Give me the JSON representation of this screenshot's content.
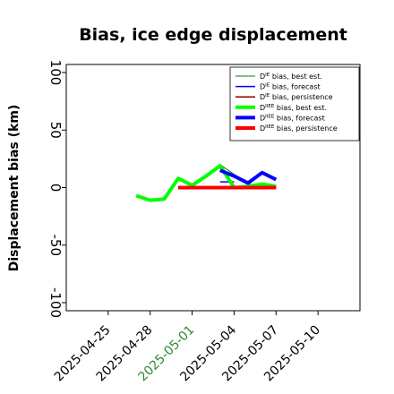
{
  "chart_data": {
    "type": "line",
    "title": "Bias, ice edge displacement",
    "ylabel": "Displacement bias (km)",
    "xlabel": "",
    "ylim": [
      -107,
      107
    ],
    "xlim": [
      "2025-04-22",
      "2025-05-13"
    ],
    "grid": false,
    "legend_position": "top-right",
    "yticks": [
      -100,
      -50,
      0,
      50,
      100
    ],
    "xticks": [
      {
        "date": "2025-04-25",
        "label": "2025-04-25",
        "color": "#000000"
      },
      {
        "date": "2025-04-28",
        "label": "2025-04-28",
        "color": "#000000"
      },
      {
        "date": "2025-05-01",
        "label": "2025-05-01",
        "color": "#2e8b2e"
      },
      {
        "date": "2025-05-04",
        "label": "2025-05-04",
        "color": "#000000"
      },
      {
        "date": "2025-05-07",
        "label": "2025-05-07",
        "color": "#000000"
      },
      {
        "date": "2025-05-10",
        "label": "2025-05-10",
        "color": "#000000"
      }
    ],
    "series": [
      {
        "name": "Dᴵᴱ bias, best est.",
        "legend_main": "D",
        "legend_sup": "IE",
        "legend_rest": " bias, best est.",
        "color": "#008000",
        "width": 1,
        "points": [
          [
            "2025-05-03",
            20
          ],
          [
            "2025-05-05",
            3
          ],
          [
            "2025-05-06",
            2
          ],
          [
            "2025-05-07",
            0
          ]
        ]
      },
      {
        "name": "Dᴵᴱ bias, forecast",
        "legend_main": "D",
        "legend_sup": "IE",
        "legend_rest": " bias, forecast",
        "color": "#0000ff",
        "width": 1.5,
        "points": [
          [
            "2025-05-03",
            5
          ],
          [
            "2025-05-04",
            5
          ]
        ]
      },
      {
        "name": "Dᴵᴱ bias, persistence",
        "legend_main": "D",
        "legend_sup": "IE",
        "legend_rest": " bias, persistence",
        "color": "#8b0000",
        "width": 1.5,
        "points": [
          [
            "2025-04-30",
            0
          ],
          [
            "2025-05-07",
            0
          ]
        ]
      },
      {
        "name": "Dᴵᴵᴱ bias, best est.",
        "legend_main": "D",
        "legend_sup": "IIEE",
        "legend_rest": " bias, best est.",
        "color": "#00ff00",
        "width": 4,
        "points": [
          [
            "2025-04-27",
            -7
          ],
          [
            "2025-04-28",
            -11
          ],
          [
            "2025-04-29",
            -10
          ],
          [
            "2025-04-30",
            8
          ],
          [
            "2025-05-01",
            2
          ],
          [
            "2025-05-02",
            10
          ],
          [
            "2025-05-03",
            19
          ],
          [
            "2025-05-04",
            0
          ],
          [
            "2025-05-05",
            1
          ],
          [
            "2025-05-06",
            3
          ],
          [
            "2025-05-07",
            1
          ]
        ]
      },
      {
        "name": "Dᴵᴵᴱ bias, forecast",
        "legend_main": "D",
        "legend_sup": "IIEE",
        "legend_rest": " bias, forecast",
        "color": "#0000ff",
        "width": 4,
        "points": [
          [
            "2025-05-03",
            15
          ],
          [
            "2025-05-04",
            10
          ],
          [
            "2025-05-05",
            4
          ],
          [
            "2025-05-06",
            13
          ],
          [
            "2025-05-07",
            7
          ]
        ]
      },
      {
        "name": "Dᴵᴵᴱ bias, persistence",
        "legend_main": "D",
        "legend_sup": "IIEE",
        "legend_rest": " bias, persistence",
        "color": "#ff0000",
        "width": 4,
        "points": [
          [
            "2025-04-30",
            0
          ],
          [
            "2025-05-07",
            0
          ]
        ]
      }
    ]
  }
}
